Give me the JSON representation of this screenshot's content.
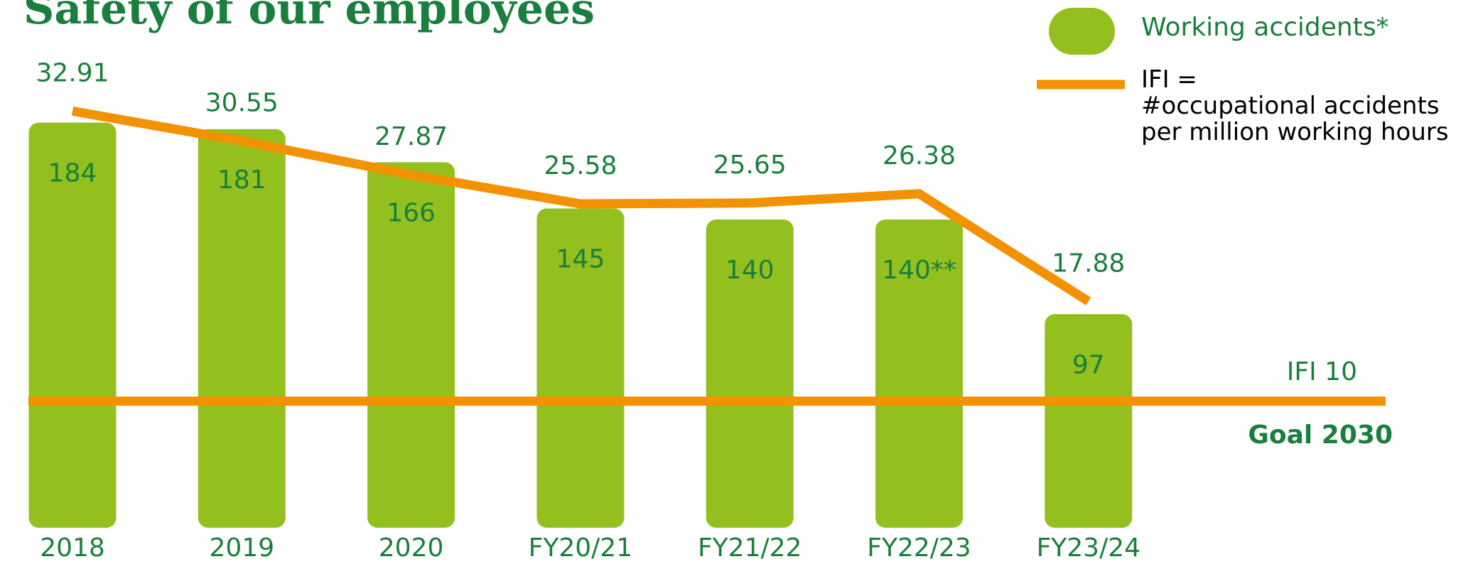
{
  "chart_data": {
    "type": "bar-line",
    "title": "Safety of our employees",
    "categories": [
      "2018",
      "2019",
      "2020",
      "FY20/21",
      "FY21/22",
      "FY22/23",
      "FY23/24"
    ],
    "series": [
      {
        "name": "Working accidents*",
        "type": "bar",
        "color": "#93c01f",
        "values": [
          184,
          181,
          166,
          145,
          140,
          140,
          97
        ],
        "value_labels": [
          "184",
          "181",
          "166",
          "145",
          "140",
          "140**",
          "97"
        ]
      },
      {
        "name": "IFI =\n#occupational accidents\nper million working hours",
        "type": "line",
        "color": "#f39200",
        "axis": "y2",
        "values": [
          32.91,
          30.55,
          27.87,
          25.58,
          25.65,
          26.38,
          17.88
        ]
      }
    ],
    "ylim": [
      0,
      230
    ],
    "y2lim": [
      0,
      40
    ],
    "goal": {
      "value": 10,
      "label": "IFI 10",
      "text": "Goal 2030"
    }
  }
}
